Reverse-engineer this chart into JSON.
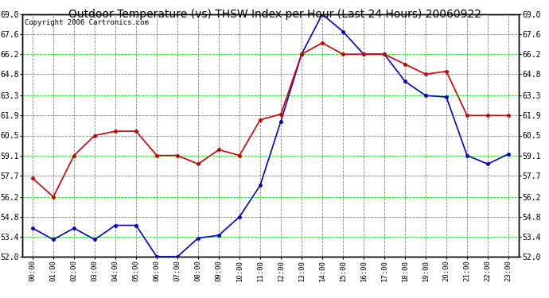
{
  "title": "Outdoor Temperature (vs) THSW Index per Hour (Last 24 Hours) 20060922",
  "copyright": "Copyright 2006 Cartronics.com",
  "hours": [
    "00:00",
    "01:00",
    "02:00",
    "03:00",
    "04:00",
    "05:00",
    "06:00",
    "07:00",
    "08:00",
    "09:00",
    "10:00",
    "11:00",
    "12:00",
    "13:00",
    "14:00",
    "15:00",
    "16:00",
    "17:00",
    "18:00",
    "19:00",
    "20:00",
    "21:00",
    "22:00",
    "23:00"
  ],
  "blue_data": [
    54.0,
    53.2,
    54.0,
    53.2,
    54.2,
    54.2,
    52.0,
    52.0,
    53.3,
    53.5,
    54.8,
    57.0,
    61.5,
    66.2,
    69.0,
    67.8,
    66.2,
    66.2,
    64.3,
    63.3,
    63.2,
    59.1,
    58.5,
    59.2
  ],
  "red_data": [
    57.5,
    56.2,
    59.1,
    60.5,
    60.8,
    60.8,
    59.1,
    59.1,
    58.5,
    59.5,
    59.1,
    61.6,
    62.0,
    66.2,
    67.0,
    66.2,
    66.2,
    66.2,
    65.5,
    64.8,
    65.0,
    61.9,
    61.9,
    61.9
  ],
  "ylim_min": 52.0,
  "ylim_max": 69.0,
  "yticks": [
    52.0,
    53.4,
    54.8,
    56.2,
    57.7,
    59.1,
    60.5,
    61.9,
    63.3,
    64.8,
    66.2,
    67.6,
    69.0
  ],
  "background_color": "#ffffff",
  "plot_bg_color": "#ffffff",
  "grid_color": "#00dd00",
  "blue_color": "#0000cc",
  "red_color": "#cc0000",
  "title_fontsize": 10,
  "copyright_fontsize": 6.5
}
